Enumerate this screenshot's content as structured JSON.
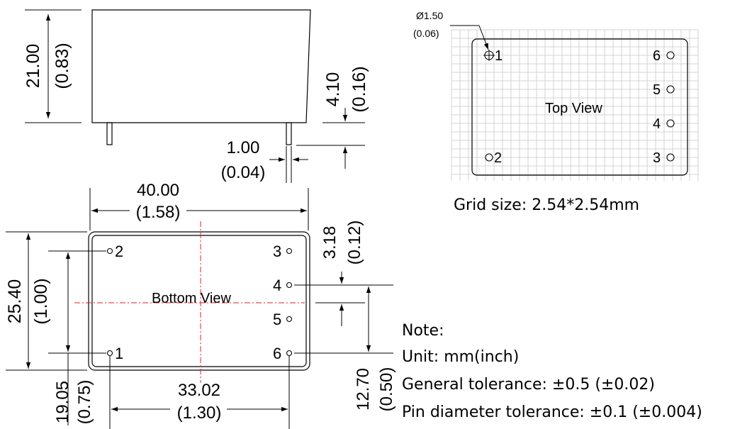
{
  "side_view": {
    "height_mm": "21.00",
    "height_in": "(0.83)",
    "pin_length_mm": "4.10",
    "pin_length_in": "(0.16)",
    "pin_width_mm": "1.00",
    "pin_width_in": "(0.04)"
  },
  "top_view": {
    "hole_diameter_mm": "Ø1.50",
    "hole_diameter_in": "(0.06)",
    "label": "Top View",
    "pins": [
      "1",
      "2",
      "3",
      "4",
      "5",
      "6"
    ],
    "grid_caption": "Grid size: 2.54*2.54mm"
  },
  "bottom_view": {
    "width_mm": "40.00",
    "width_in": "(1.58)",
    "height_mm": "25.40",
    "height_in": "(1.00)",
    "pin_row_mm": "19.05",
    "pin_row_in": "(0.75)",
    "pin_span_mm": "33.02",
    "pin_span_in": "(1.30)",
    "edge_offset_mm": "3.18",
    "edge_offset_in": "(0.12)",
    "pin_pitch_mm": "12.70",
    "pin_pitch_in": "(0.50)",
    "label": "Bottom View",
    "pins": [
      "1",
      "2",
      "3",
      "4",
      "5",
      "6"
    ]
  },
  "notes": {
    "title": "Note:",
    "unit": "Unit: mm(inch)",
    "general_tolerance": "General tolerance: ±0.5 (±0.02)",
    "pin_tolerance": "Pin diameter tolerance: ±0.1 (±0.004)"
  }
}
